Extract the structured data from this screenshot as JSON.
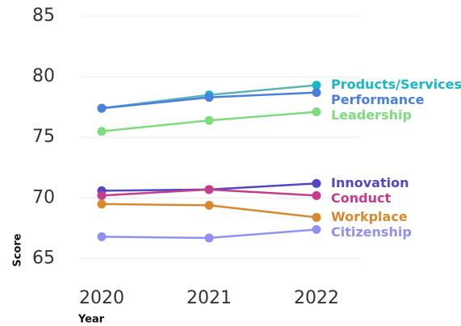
{
  "chart_data": {
    "type": "line",
    "x_label": "Year",
    "y_label": "Score",
    "categories": [
      "2020",
      "2021",
      "2022"
    ],
    "ylim": [
      63.5,
      85
    ],
    "yticks": [
      65,
      70,
      75,
      80,
      85
    ],
    "grid": true,
    "series": [
      {
        "name": "Products/Services",
        "color": "#17b8c4",
        "line_color": "#5ab4bc",
        "values": [
          77.4,
          78.5,
          79.3
        ]
      },
      {
        "name": "Performance",
        "color": "#4a7fe0",
        "values": [
          77.4,
          78.3,
          78.7
        ]
      },
      {
        "name": "Leadership",
        "color": "#7ddc7d",
        "values": [
          75.5,
          76.4,
          77.1
        ]
      },
      {
        "name": "Innovation",
        "color": "#5046c8",
        "values": [
          70.6,
          70.7,
          71.2
        ]
      },
      {
        "name": "Conduct",
        "color": "#c83c8c",
        "values": [
          70.2,
          70.7,
          70.2
        ]
      },
      {
        "name": "Workplace",
        "color": "#d8892f",
        "values": [
          69.5,
          69.4,
          68.4
        ]
      },
      {
        "name": "Citizenship",
        "color": "#9090f0",
        "values": [
          66.8,
          66.7,
          67.4
        ]
      }
    ]
  }
}
